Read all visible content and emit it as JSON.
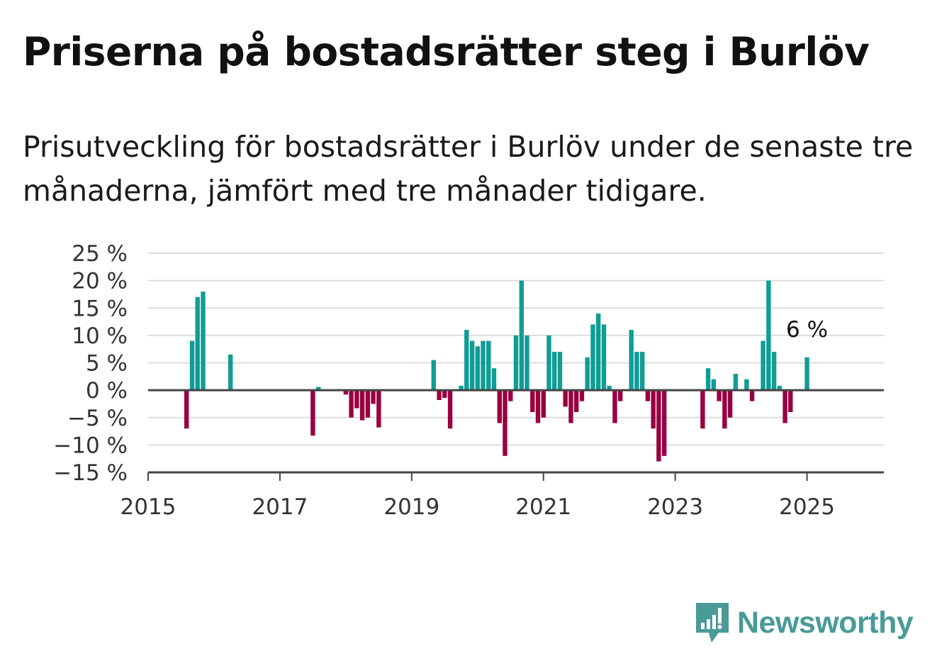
{
  "header": {
    "title": "Priserna på bostadsrätter steg i Burlöv",
    "subtitle": "Prisutveckling för bostadsrätter i Burlöv under de senaste tre månaderna, jämfört med tre månader tidigare."
  },
  "brand": {
    "name": "Newsworthy",
    "icon": "newsworthy-logo-icon",
    "color": "#4a9a98"
  },
  "chart_data": {
    "type": "bar",
    "title": "",
    "xlabel": "",
    "ylabel": "",
    "ylim": [
      -15,
      25
    ],
    "yticks": [
      25,
      20,
      15,
      10,
      5,
      0,
      -5,
      -10,
      -15
    ],
    "ytick_labels": [
      "25 %",
      "20 %",
      "15 %",
      "10 %",
      "5 %",
      "0 %",
      "−5 %",
      "−10 %",
      "−15 %"
    ],
    "xticks": [
      2015,
      2017,
      2019,
      2021,
      2023,
      2025
    ],
    "xtick_labels": [
      "2015",
      "2017",
      "2019",
      "2021",
      "2023",
      "2025"
    ],
    "grid": true,
    "colors": {
      "positive": "#0f9d94",
      "negative": "#990040"
    },
    "annotation": {
      "label": "6 %",
      "date": "2025-01"
    },
    "series": [
      {
        "values": [
          {
            "date": "2015-08",
            "value": -7
          },
          {
            "date": "2015-09",
            "value": 9
          },
          {
            "date": "2015-10",
            "value": 17
          },
          {
            "date": "2015-11",
            "value": 18
          },
          {
            "date": "2016-04",
            "value": 6.5
          },
          {
            "date": "2017-07",
            "value": -8.3
          },
          {
            "date": "2017-08",
            "value": 0.6
          },
          {
            "date": "2018-01",
            "value": -0.8
          },
          {
            "date": "2018-02",
            "value": -5
          },
          {
            "date": "2018-03",
            "value": -3.3
          },
          {
            "date": "2018-04",
            "value": -5.5
          },
          {
            "date": "2018-05",
            "value": -5
          },
          {
            "date": "2018-06",
            "value": -2.5
          },
          {
            "date": "2018-07",
            "value": -6.8
          },
          {
            "date": "2019-05",
            "value": 5.5
          },
          {
            "date": "2019-06",
            "value": -1.8
          },
          {
            "date": "2019-07",
            "value": -1.4
          },
          {
            "date": "2019-08",
            "value": -7
          },
          {
            "date": "2019-10",
            "value": 0.8
          },
          {
            "date": "2019-11",
            "value": 11
          },
          {
            "date": "2019-12",
            "value": 9
          },
          {
            "date": "2020-01",
            "value": 8
          },
          {
            "date": "2020-02",
            "value": 9
          },
          {
            "date": "2020-03",
            "value": 9
          },
          {
            "date": "2020-04",
            "value": 4
          },
          {
            "date": "2020-05",
            "value": -6
          },
          {
            "date": "2020-06",
            "value": -12
          },
          {
            "date": "2020-07",
            "value": -2
          },
          {
            "date": "2020-08",
            "value": 10
          },
          {
            "date": "2020-09",
            "value": 20
          },
          {
            "date": "2020-10",
            "value": 10
          },
          {
            "date": "2020-11",
            "value": -4
          },
          {
            "date": "2020-12",
            "value": -6
          },
          {
            "date": "2021-01",
            "value": -5
          },
          {
            "date": "2021-02",
            "value": 10
          },
          {
            "date": "2021-03",
            "value": 7
          },
          {
            "date": "2021-04",
            "value": 7
          },
          {
            "date": "2021-05",
            "value": -3
          },
          {
            "date": "2021-06",
            "value": -6
          },
          {
            "date": "2021-07",
            "value": -4
          },
          {
            "date": "2021-08",
            "value": -2
          },
          {
            "date": "2021-09",
            "value": 6
          },
          {
            "date": "2021-10",
            "value": 12
          },
          {
            "date": "2021-11",
            "value": 14
          },
          {
            "date": "2021-12",
            "value": 12
          },
          {
            "date": "2022-01",
            "value": 0.8
          },
          {
            "date": "2022-02",
            "value": -6
          },
          {
            "date": "2022-03",
            "value": -2
          },
          {
            "date": "2022-05",
            "value": 11
          },
          {
            "date": "2022-06",
            "value": 7
          },
          {
            "date": "2022-07",
            "value": 7
          },
          {
            "date": "2022-08",
            "value": -2
          },
          {
            "date": "2022-09",
            "value": -7
          },
          {
            "date": "2022-10",
            "value": -13
          },
          {
            "date": "2022-11",
            "value": -12
          },
          {
            "date": "2023-06",
            "value": -7
          },
          {
            "date": "2023-07",
            "value": 4
          },
          {
            "date": "2023-08",
            "value": 2
          },
          {
            "date": "2023-09",
            "value": -2
          },
          {
            "date": "2023-10",
            "value": -7
          },
          {
            "date": "2023-11",
            "value": -5
          },
          {
            "date": "2023-12",
            "value": 3
          },
          {
            "date": "2024-02",
            "value": 2
          },
          {
            "date": "2024-03",
            "value": -2
          },
          {
            "date": "2024-05",
            "value": 9
          },
          {
            "date": "2024-06",
            "value": 20
          },
          {
            "date": "2024-07",
            "value": 7
          },
          {
            "date": "2024-08",
            "value": 0.8
          },
          {
            "date": "2024-09",
            "value": -6
          },
          {
            "date": "2024-10",
            "value": -4
          },
          {
            "date": "2025-01",
            "value": 6
          }
        ]
      }
    ]
  }
}
